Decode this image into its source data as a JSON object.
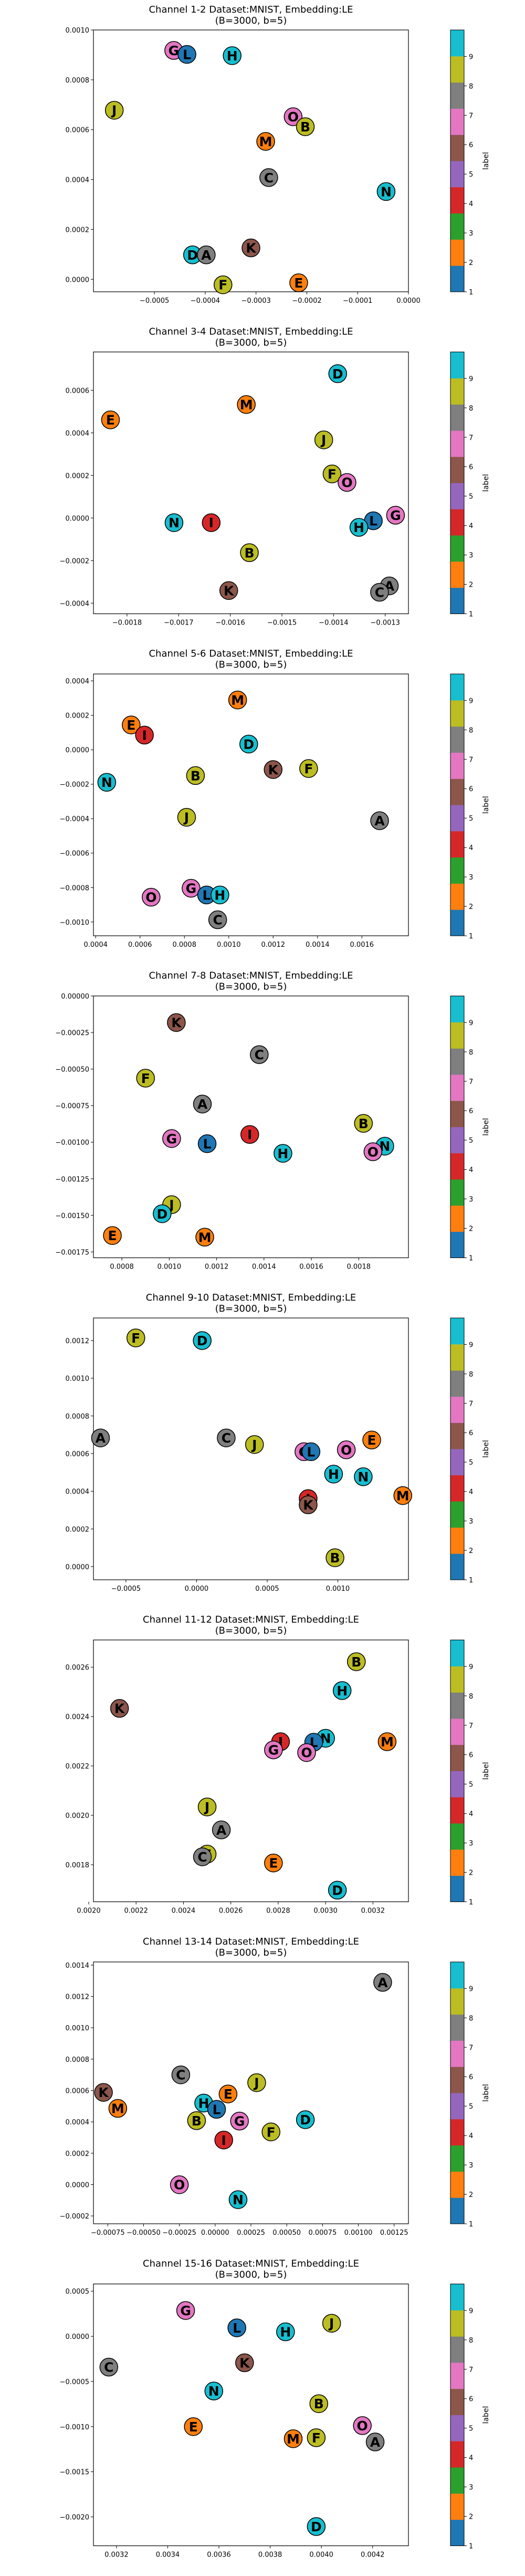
{
  "figure": {
    "label_colors": {
      "A": "#7f7f7f",
      "B": "#bcbd22",
      "C": "#7f7f7f",
      "D": "#17becf",
      "E": "#ff7f0e",
      "F": "#bcbd22",
      "G": "#e377c2",
      "H": "#17becf",
      "I": "#d62728",
      "J": "#bcbd22",
      "K": "#8c564b",
      "L": "#1f77b4",
      "M": "#ff7f0e",
      "N": "#17becf",
      "O": "#e377c2"
    },
    "colorbar": {
      "label": "label",
      "ticks": [
        "1",
        "2",
        "3",
        "4",
        "5",
        "6",
        "7",
        "8",
        "9"
      ],
      "colors": [
        "#1f77b4",
        "#ff7f0e",
        "#2ca02c",
        "#d62728",
        "#9467bd",
        "#8c564b",
        "#e377c2",
        "#7f7f7f",
        "#bcbd22",
        "#17becf"
      ]
    }
  },
  "chart_data": [
    {
      "type": "scatter",
      "title": "Channel 1-2 Dataset:MNIST, Embedding:LE",
      "subtitle": "(B=3000, b=5)",
      "xlim": [
        -0.00062,
        0.0
      ],
      "ylim": [
        -5e-05,
        0.001
      ],
      "xticks": [
        -0.0005,
        -0.0004,
        -0.0003,
        -0.0002,
        -0.0001,
        0.0
      ],
      "xtick_labels": [
        "−0.0005",
        "−0.0004",
        "−0.0003",
        "−0.0002",
        "−0.0001",
        "0.0000"
      ],
      "yticks": [
        0.0,
        0.0002,
        0.0004,
        0.0006,
        0.0008,
        0.001
      ],
      "ytick_labels": [
        "0.0000",
        "0.0002",
        "0.0004",
        "0.0006",
        "0.0008",
        "0.0010"
      ],
      "points": [
        {
          "label": "G",
          "x": -0.000462,
          "y": 0.000918
        },
        {
          "label": "L",
          "x": -0.000436,
          "y": 0.000902
        },
        {
          "label": "H",
          "x": -0.000347,
          "y": 0.000897
        },
        {
          "label": "J",
          "x": -0.000579,
          "y": 0.000678
        },
        {
          "label": "O",
          "x": -0.000227,
          "y": 0.000652
        },
        {
          "label": "B",
          "x": -0.000203,
          "y": 0.000612
        },
        {
          "label": "M",
          "x": -0.000281,
          "y": 0.000553
        },
        {
          "label": "C",
          "x": -0.000275,
          "y": 0.000408
        },
        {
          "label": "N",
          "x": -4.4e-05,
          "y": 0.000352
        },
        {
          "label": "D",
          "x": -0.000425,
          "y": 9.8e-05
        },
        {
          "label": "A",
          "x": -0.000398,
          "y": 9.8e-05
        },
        {
          "label": "K",
          "x": -0.00031,
          "y": 0.000126
        },
        {
          "label": "E",
          "x": -0.000216,
          "y": -1.4e-05
        },
        {
          "label": "F",
          "x": -0.000365,
          "y": -2.2e-05
        }
      ]
    },
    {
      "type": "scatter",
      "title": "Channel 3-4 Dataset:MNIST, Embedding:LE",
      "subtitle": "(B=3000, b=5)",
      "xlim": [
        -0.001865,
        -0.001255
      ],
      "ylim": [
        -0.00045,
        0.00078
      ],
      "xticks": [
        -0.0018,
        -0.0017,
        -0.0016,
        -0.0015,
        -0.0014,
        -0.0013
      ],
      "xtick_labels": [
        "−0.0018",
        "−0.0017",
        "−0.0016",
        "−0.0015",
        "−0.0014",
        "−0.0013"
      ],
      "yticks": [
        -0.0004,
        -0.0002,
        0.0,
        0.0002,
        0.0004,
        0.0006
      ],
      "ytick_labels": [
        "−0.0004",
        "−0.0002",
        "0.0000",
        "0.0002",
        "0.0004",
        "0.0006"
      ],
      "points": [
        {
          "label": "D",
          "x": -0.001392,
          "y": 0.000678
        },
        {
          "label": "M",
          "x": -0.001569,
          "y": 0.000533
        },
        {
          "label": "E",
          "x": -0.001832,
          "y": 0.000461
        },
        {
          "label": "J",
          "x": -0.001419,
          "y": 0.000367
        },
        {
          "label": "F",
          "x": -0.001403,
          "y": 0.000207
        },
        {
          "label": "O",
          "x": -0.001374,
          "y": 0.000167
        },
        {
          "label": "N",
          "x": -0.001709,
          "y": -2.2e-05
        },
        {
          "label": "I",
          "x": -0.001637,
          "y": -2.2e-05
        },
        {
          "label": "G",
          "x": -0.00128,
          "y": 1.3e-05
        },
        {
          "label": "L",
          "x": -0.001323,
          "y": -1.3e-05
        },
        {
          "label": "H",
          "x": -0.001351,
          "y": -4.4e-05
        },
        {
          "label": "B",
          "x": -0.001563,
          "y": -0.000163
        },
        {
          "label": "A",
          "x": -0.001292,
          "y": -0.000319
        },
        {
          "label": "C",
          "x": -0.001311,
          "y": -0.000349
        },
        {
          "label": "K",
          "x": -0.001603,
          "y": -0.000341
        }
      ]
    },
    {
      "type": "scatter",
      "title": "Channel 5-6 Dataset:MNIST, Embedding:LE",
      "subtitle": "(B=3000, b=5)",
      "xlim": [
        0.00039,
        0.00181
      ],
      "ylim": [
        -0.00108,
        0.00044
      ],
      "xticks": [
        0.0004,
        0.0006,
        0.0008,
        0.001,
        0.0012,
        0.0014,
        0.0016
      ],
      "xtick_labels": [
        "0.0004",
        "0.0006",
        "0.0008",
        "0.0010",
        "0.0012",
        "0.0014",
        "0.0016"
      ],
      "yticks": [
        -0.001,
        -0.0008,
        -0.0006,
        -0.0004,
        -0.0002,
        0.0,
        0.0002,
        0.0004
      ],
      "ytick_labels": [
        "−0.0010",
        "−0.0008",
        "−0.0006",
        "−0.0004",
        "−0.0002",
        "0.0000",
        "0.0002",
        "0.0004"
      ],
      "points": [
        {
          "label": "M",
          "x": 0.00104,
          "y": 0.000289
        },
        {
          "label": "E",
          "x": 0.00056,
          "y": 0.000144
        },
        {
          "label": "I",
          "x": 0.00062,
          "y": 8.5e-05
        },
        {
          "label": "D",
          "x": 0.00109,
          "y": 3.3e-05
        },
        {
          "label": "N",
          "x": 0.00045,
          "y": -0.000189
        },
        {
          "label": "K",
          "x": 0.0012,
          "y": -0.000115
        },
        {
          "label": "F",
          "x": 0.00136,
          "y": -0.000109
        },
        {
          "label": "B",
          "x": 0.00085,
          "y": -0.00015
        },
        {
          "label": "J",
          "x": 0.00081,
          "y": -0.000392
        },
        {
          "label": "A",
          "x": 0.00168,
          "y": -0.000412
        },
        {
          "label": "G",
          "x": 0.00083,
          "y": -0.000804
        },
        {
          "label": "L",
          "x": 0.0009,
          "y": -0.000843
        },
        {
          "label": "H",
          "x": 0.00096,
          "y": -0.000843
        },
        {
          "label": "O",
          "x": 0.00065,
          "y": -0.000856
        },
        {
          "label": "C",
          "x": 0.00095,
          "y": -0.000987
        }
      ]
    },
    {
      "type": "scatter",
      "title": "Channel 7-8 Dataset:MNIST, Embedding:LE",
      "subtitle": "(B=3000, b=5)",
      "xlim": [
        0.00068,
        0.00201
      ],
      "ylim": [
        -0.00179,
        0.0
      ],
      "xticks": [
        0.0008,
        0.001,
        0.0012,
        0.0014,
        0.0016,
        0.0018
      ],
      "xtick_labels": [
        "0.0008",
        "0.0010",
        "0.0012",
        "0.0014",
        "0.0016",
        "0.0018"
      ],
      "yticks": [
        -0.00175,
        -0.0015,
        -0.00125,
        -0.001,
        -0.00075,
        -0.0005,
        -0.00025,
        0.0
      ],
      "ytick_labels": [
        "−0.00175",
        "−0.00150",
        "−0.00125",
        "−0.00100",
        "−0.00075",
        "−0.00050",
        "−0.00025",
        "0.00000"
      ],
      "points": [
        {
          "label": "K",
          "x": 0.00103,
          "y": -0.000182
        },
        {
          "label": "C",
          "x": 0.00138,
          "y": -0.000401
        },
        {
          "label": "F",
          "x": 0.0009,
          "y": -0.000562
        },
        {
          "label": "A",
          "x": 0.00114,
          "y": -0.000739
        },
        {
          "label": "B",
          "x": 0.00182,
          "y": -0.000871
        },
        {
          "label": "I",
          "x": 0.00134,
          "y": -0.000947
        },
        {
          "label": "G",
          "x": 0.00101,
          "y": -0.000975
        },
        {
          "label": "L",
          "x": 0.00116,
          "y": -0.00101
        },
        {
          "label": "N",
          "x": 0.00191,
          "y": -0.001027
        },
        {
          "label": "O",
          "x": 0.00186,
          "y": -0.001065
        },
        {
          "label": "H",
          "x": 0.00148,
          "y": -0.001076
        },
        {
          "label": "J",
          "x": 0.00101,
          "y": -0.001427
        },
        {
          "label": "D",
          "x": 0.00097,
          "y": -0.001489
        },
        {
          "label": "E",
          "x": 0.00076,
          "y": -0.001638
        },
        {
          "label": "M",
          "x": 0.00115,
          "y": -0.001649
        }
      ]
    },
    {
      "type": "scatter",
      "title": "Channel 9-10 Dataset:MNIST, Embedding:LE",
      "subtitle": "(B=3000, b=5)",
      "xlim": [
        -0.00073,
        0.0015
      ],
      "ylim": [
        -7e-05,
        0.00132
      ],
      "xticks": [
        -0.0005,
        0.0,
        0.0005,
        0.001
      ],
      "xtick_labels": [
        "−0.0005",
        "0.0000",
        "0.0005",
        "0.0010"
      ],
      "yticks": [
        0.0,
        0.0002,
        0.0004,
        0.0006,
        0.0008,
        0.001,
        0.0012
      ],
      "ytick_labels": [
        "0.0000",
        "0.0002",
        "0.0004",
        "0.0006",
        "0.0008",
        "0.0010",
        "0.0012"
      ],
      "points": [
        {
          "label": "F",
          "x": -0.00043,
          "y": 0.001214
        },
        {
          "label": "D",
          "x": 4e-05,
          "y": 0.0012
        },
        {
          "label": "A",
          "x": -0.00068,
          "y": 0.000683
        },
        {
          "label": "C",
          "x": 0.00021,
          "y": 0.000683
        },
        {
          "label": "J",
          "x": 0.00041,
          "y": 0.000648
        },
        {
          "label": "E",
          "x": 0.00124,
          "y": 0.000672
        },
        {
          "label": "O",
          "x": 0.00106,
          "y": 0.00062
        },
        {
          "label": "G",
          "x": 0.00076,
          "y": 0.00061
        },
        {
          "label": "L",
          "x": 0.00081,
          "y": 0.00061
        },
        {
          "label": "H",
          "x": 0.00097,
          "y": 0.000491
        },
        {
          "label": "N",
          "x": 0.00118,
          "y": 0.000477
        },
        {
          "label": "M",
          "x": 0.00146,
          "y": 0.000377
        },
        {
          "label": "I",
          "x": 0.00079,
          "y": 0.000361
        },
        {
          "label": "K",
          "x": 0.00079,
          "y": 0.000328
        },
        {
          "label": "B",
          "x": 0.00098,
          "y": 4.7e-05
        }
      ]
    },
    {
      "type": "scatter",
      "title": "Channel 11-12 Dataset:MNIST, Embedding:LE",
      "subtitle": "(B=3000, b=5)",
      "xlim": [
        0.00202,
        0.00335
      ],
      "ylim": [
        0.00165,
        0.00271
      ],
      "xticks": [
        0.002,
        0.0022,
        0.0024,
        0.0026,
        0.0028,
        0.003,
        0.0032
      ],
      "xtick_labels": [
        "0.0020",
        "0.0022",
        "0.0024",
        "0.0026",
        "0.0028",
        "0.0030",
        "0.0032"
      ],
      "yticks": [
        0.0018,
        0.002,
        0.0022,
        0.0024,
        0.0026
      ],
      "ytick_labels": [
        "0.0018",
        "0.0020",
        "0.0022",
        "0.0024",
        "0.0026"
      ],
      "points": [
        {
          "label": "B",
          "x": 0.00313,
          "y": 0.002622
        },
        {
          "label": "H",
          "x": 0.00307,
          "y": 0.002505
        },
        {
          "label": "K",
          "x": 0.00213,
          "y": 0.002433
        },
        {
          "label": "N",
          "x": 0.003,
          "y": 0.002312
        },
        {
          "label": "L",
          "x": 0.00295,
          "y": 0.002296
        },
        {
          "label": "I",
          "x": 0.00281,
          "y": 0.002298
        },
        {
          "label": "M",
          "x": 0.00326,
          "y": 0.002298
        },
        {
          "label": "G",
          "x": 0.00278,
          "y": 0.002265
        },
        {
          "label": "O",
          "x": 0.00292,
          "y": 0.002254
        },
        {
          "label": "J",
          "x": 0.0025,
          "y": 0.002034
        },
        {
          "label": "A",
          "x": 0.00256,
          "y": 0.001941
        },
        {
          "label": "F",
          "x": 0.0025,
          "y": 0.001843
        },
        {
          "label": "C",
          "x": 0.00248,
          "y": 0.001832
        },
        {
          "label": "E",
          "x": 0.00278,
          "y": 0.001807
        },
        {
          "label": "D",
          "x": 0.00305,
          "y": 0.001697
        }
      ]
    },
    {
      "type": "scatter",
      "title": "Channel 13-14 Dataset:MNIST, Embedding:LE",
      "subtitle": "(B=3000, b=5)",
      "xlim": [
        -0.00085,
        0.00135
      ],
      "ylim": [
        -0.00025,
        0.00142
      ],
      "xticks": [
        -0.00075,
        -0.0005,
        -0.00025,
        0.0,
        0.00025,
        0.0005,
        0.00075,
        0.001,
        0.00125
      ],
      "xtick_labels": [
        "−0.00075",
        "−0.00050",
        "−0.00025",
        "0.00000",
        "0.00025",
        "0.00050",
        "0.00075",
        "0.00100",
        "0.00125"
      ],
      "yticks": [
        -0.0002,
        0.0,
        0.0002,
        0.0004,
        0.0006,
        0.0008,
        0.001,
        0.0012,
        0.0014
      ],
      "ytick_labels": [
        "−0.0002",
        "0.0000",
        "0.0002",
        "0.0004",
        "0.0006",
        "0.0008",
        "0.0010",
        "0.0012",
        "0.0014"
      ],
      "points": [
        {
          "label": "A",
          "x": 0.00117,
          "y": 0.00129
        },
        {
          "label": "C",
          "x": -0.00024,
          "y": 0.0007
        },
        {
          "label": "J",
          "x": 0.00029,
          "y": 0.00065
        },
        {
          "label": "K",
          "x": -0.00078,
          "y": 0.000588
        },
        {
          "label": "E",
          "x": 9e-05,
          "y": 0.000578
        },
        {
          "label": "M",
          "x": -0.00068,
          "y": 0.000486
        },
        {
          "label": "H",
          "x": -8e-05,
          "y": 0.00052
        },
        {
          "label": "L",
          "x": 1e-05,
          "y": 0.00048
        },
        {
          "label": "D",
          "x": 0.00063,
          "y": 0.000414
        },
        {
          "label": "B",
          "x": -0.00013,
          "y": 0.000408
        },
        {
          "label": "G",
          "x": 0.00017,
          "y": 0.000405
        },
        {
          "label": "F",
          "x": 0.00039,
          "y": 0.000336
        },
        {
          "label": "I",
          "x": 6e-05,
          "y": 0.000284
        },
        {
          "label": "O",
          "x": -0.00025,
          "y": -1e-06
        },
        {
          "label": "N",
          "x": 0.00016,
          "y": -9.6e-05
        }
      ]
    },
    {
      "type": "scatter",
      "title": "Channel 15-16 Dataset:MNIST, Embedding:LE",
      "subtitle": "(B=3000, b=5)",
      "xlim": [
        0.00311,
        0.00434
      ],
      "ylim": [
        -0.00232,
        0.00058
      ],
      "xticks": [
        0.0032,
        0.0034,
        0.0036,
        0.0038,
        0.004,
        0.0042
      ],
      "xtick_labels": [
        "0.0032",
        "0.0034",
        "0.0036",
        "0.0038",
        "0.0040",
        "0.0042"
      ],
      "yticks": [
        -0.002,
        -0.0015,
        -0.001,
        -0.0005,
        0.0,
        0.0005
      ],
      "ytick_labels": [
        "−0.0020",
        "−0.0015",
        "−0.0010",
        "−0.0005",
        "0.0000",
        "0.0005"
      ],
      "points": [
        {
          "label": "G",
          "x": 0.00347,
          "y": 0.000286
        },
        {
          "label": "J",
          "x": 0.00404,
          "y": 0.000145
        },
        {
          "label": "L",
          "x": 0.00367,
          "y": 9.4e-05
        },
        {
          "label": "H",
          "x": 0.00386,
          "y": 5e-05
        },
        {
          "label": "C",
          "x": 0.00317,
          "y": -0.000341
        },
        {
          "label": "K",
          "x": 0.0037,
          "y": -0.000293
        },
        {
          "label": "N",
          "x": 0.00358,
          "y": -0.000606
        },
        {
          "label": "B",
          "x": 0.00399,
          "y": -0.000746
        },
        {
          "label": "E",
          "x": 0.0035,
          "y": -0.001
        },
        {
          "label": "O",
          "x": 0.00416,
          "y": -0.000989
        },
        {
          "label": "M",
          "x": 0.00389,
          "y": -0.001134
        },
        {
          "label": "F",
          "x": 0.00398,
          "y": -0.001123
        },
        {
          "label": "A",
          "x": 0.00421,
          "y": -0.00117
        },
        {
          "label": "D",
          "x": 0.00398,
          "y": -0.002107
        }
      ]
    }
  ]
}
